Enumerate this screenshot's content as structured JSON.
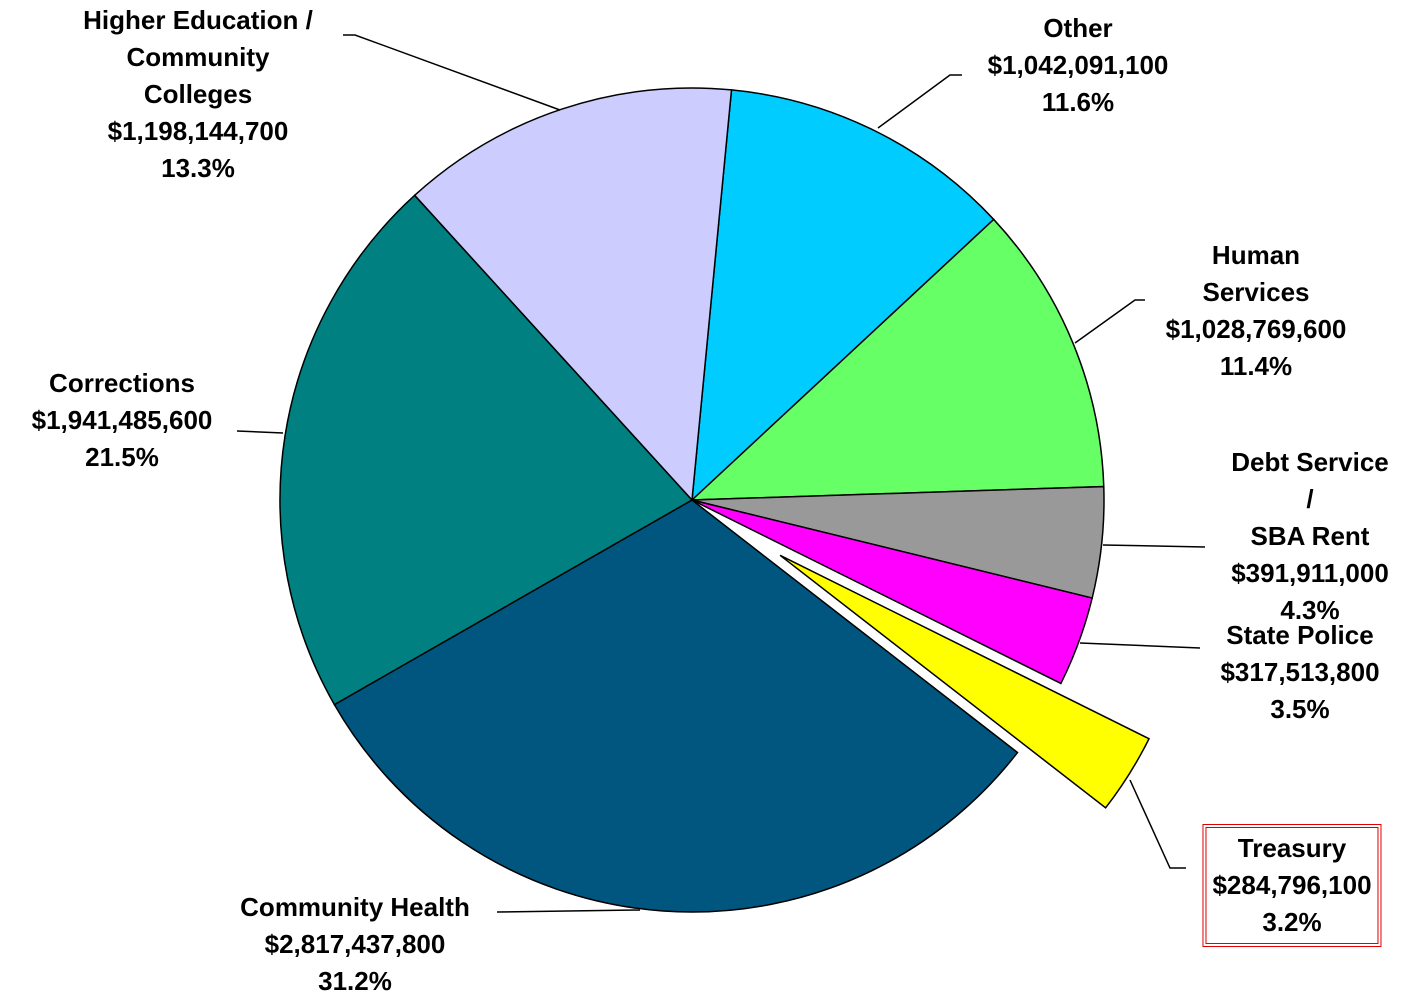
{
  "chart_data": {
    "type": "pie",
    "categories": [
      "Other",
      "Human Services",
      "Debt Service /\nSBA Rent",
      "State Police",
      "Treasury",
      "Community Health",
      "Corrections",
      "Higher Education /\nCommunity\nColleges"
    ],
    "values": [
      1042091100,
      1028769600,
      391911000,
      317513800,
      284796100,
      2817437800,
      1941485600,
      1198144700
    ],
    "value_labels": [
      "$1,042,091,100",
      "$1,028,769,600",
      "$391,911,000",
      "$317,513,800",
      "$284,796,100",
      "$2,817,437,800",
      "$1,941,485,600",
      "$1,198,144,700"
    ],
    "percents": [
      11.6,
      11.4,
      4.3,
      3.5,
      3.2,
      31.2,
      21.5,
      13.3
    ],
    "percent_labels": [
      "11.6%",
      "11.4%",
      "4.3%",
      "3.5%",
      "3.2%",
      "31.2%",
      "21.5%",
      "13.3%"
    ],
    "colors": [
      "#00ccff",
      "#66ff66",
      "#999999",
      "#ff00ff",
      "#ffff00",
      "#01567f",
      "#008080",
      "#ccccff"
    ],
    "exploded": "Treasury",
    "highlight": "Treasury"
  }
}
